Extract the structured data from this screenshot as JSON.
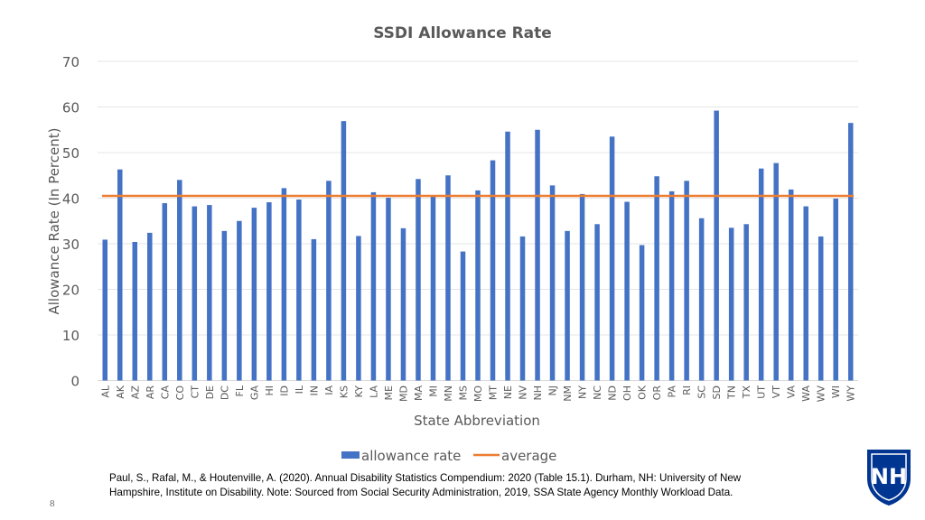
{
  "chart_data": {
    "type": "bar",
    "title": "SSDI Allowance Rate",
    "xlabel": "State Abbreviation",
    "ylabel": "Allowance Rate  (In Percent)",
    "ylim": [
      0,
      70
    ],
    "yticks": [
      0,
      10,
      20,
      30,
      40,
      50,
      60,
      70
    ],
    "grid": true,
    "legend_position": "bottom",
    "categories": [
      "AL",
      "AK",
      "AZ",
      "AR",
      "CA",
      "CO",
      "CT",
      "DE",
      "DC",
      "FL",
      "GA",
      "HI",
      "ID",
      "IL",
      "IN",
      "IA",
      "KS",
      "KY",
      "LA",
      "ME",
      "MD",
      "MA",
      "MI",
      "MN",
      "MS",
      "MO",
      "MT",
      "NE",
      "NV",
      "NH",
      "NJ",
      "NM",
      "NY",
      "NC",
      "ND",
      "OH",
      "OK",
      "OR",
      "PA",
      "RI",
      "SC",
      "SD",
      "TN",
      "TX",
      "UT",
      "VT",
      "VA",
      "WA",
      "WV",
      "WI",
      "WY"
    ],
    "series": [
      {
        "name": "allowance rate",
        "type": "bar",
        "color": "#4472c4",
        "values": [
          30.9,
          46.3,
          30.4,
          32.4,
          38.9,
          44.0,
          38.2,
          38.5,
          32.8,
          35.0,
          37.9,
          39.1,
          42.2,
          39.7,
          31.0,
          43.8,
          56.9,
          31.7,
          41.3,
          40.1,
          33.4,
          44.2,
          40.4,
          45.0,
          28.3,
          41.7,
          48.3,
          54.6,
          31.6,
          55.0,
          42.8,
          32.8,
          40.9,
          34.3,
          53.5,
          39.2,
          29.7,
          44.8,
          41.5,
          43.8,
          35.6,
          59.2,
          33.5,
          34.3,
          46.5,
          47.7,
          41.9,
          38.2,
          31.6,
          39.9,
          56.5
        ]
      },
      {
        "name": "average",
        "type": "line",
        "color": "#ed7d31",
        "value": 40.5
      }
    ]
  },
  "citation": {
    "line1": "Paul, S., Rafal, M., & Houtenville, A. (2020). Annual Disability Statistics Compendium: 2020 (Table 15.1). Durham, NH: University of New",
    "line2": "Hampshire, Institute on Disability. Note: Sourced from Social Security Administration, 2019, SSA State Agency Monthly Workload Data."
  },
  "slide_number": "8",
  "logo": {
    "text": "NH",
    "color": "#003591"
  }
}
